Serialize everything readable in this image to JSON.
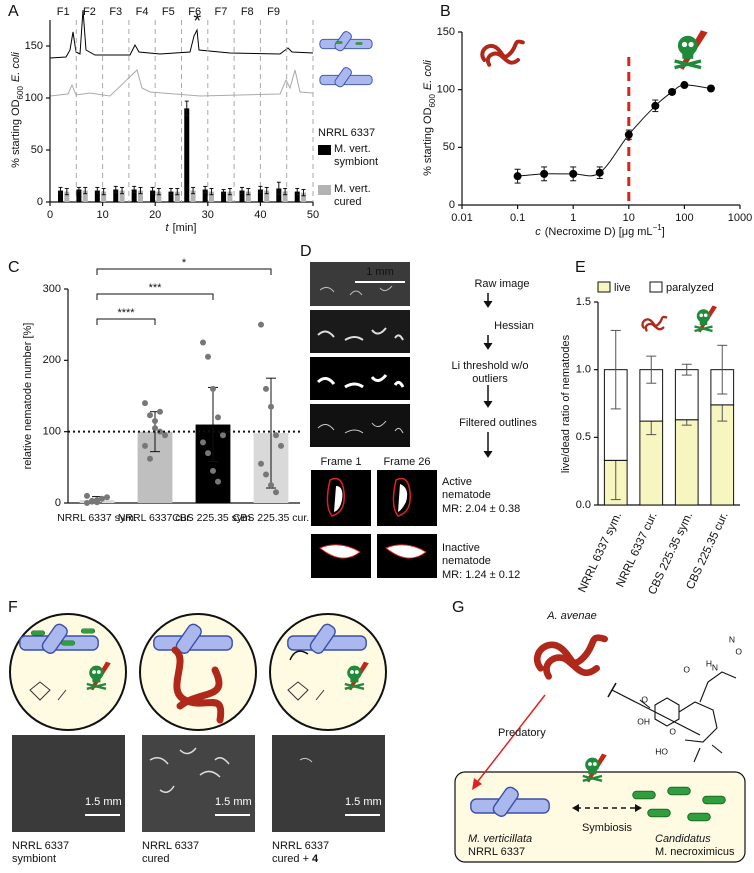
{
  "panel_labels": [
    "A",
    "B",
    "C",
    "D",
    "E",
    "F",
    "G"
  ],
  "chart_data": [
    {
      "type": "bar",
      "ylabel": {
        "main": "% starting OD",
        "sub": "600",
        "italic": "E. coli"
      },
      "xlabel": {
        "italic": "t",
        "main": "[min]"
      },
      "xlim": [
        0,
        50
      ],
      "xticks": [
        0,
        10,
        20,
        30,
        40,
        50
      ],
      "ylim": [
        0,
        175
      ],
      "yticks": [
        0,
        50,
        100,
        150
      ],
      "fractions": [
        "F1",
        "F2",
        "F3",
        "F4",
        "F5",
        "F6",
        "F7",
        "F8",
        "F9"
      ],
      "fraction_edges": [
        0,
        5,
        10,
        15,
        20,
        25,
        30,
        35,
        40,
        45,
        50
      ],
      "annotation": {
        "text": "*",
        "x": 28
      },
      "legend_title": "NRRL 6337",
      "series": [
        {
          "name": "M. vert. symbiont",
          "color": "#000000",
          "x": [
            2,
            5.5,
            9,
            12.5,
            16,
            19.5,
            23,
            26,
            29.5,
            33,
            36.5,
            40,
            43.5,
            47
          ],
          "values": [
            11,
            12,
            11,
            12,
            12,
            11,
            10,
            90,
            12,
            10,
            11,
            12,
            13,
            10
          ],
          "errors": [
            3,
            2,
            3,
            3,
            3,
            3,
            3,
            7,
            3,
            2,
            3,
            3,
            6,
            3
          ]
        },
        {
          "name": "M. vert. cured",
          "color": "#b3b3b3",
          "x": [
            3.2,
            6.7,
            10.2,
            13.7,
            17.2,
            20.7,
            24.2,
            27.2,
            30.7,
            34.2,
            37.7,
            41.2,
            44.7,
            48.2
          ],
          "values": [
            10,
            11,
            10,
            11,
            11,
            10,
            10,
            11,
            10,
            10,
            10,
            11,
            10,
            9
          ],
          "errors": [
            3,
            3,
            3,
            3,
            3,
            3,
            3,
            3,
            3,
            3,
            3,
            3,
            3,
            3
          ]
        }
      ]
    },
    {
      "type": "scatter",
      "xscale": "log",
      "ylabel": {
        "main": "% starting OD",
        "sub": "600",
        "italic": "E. coli"
      },
      "xlabel": {
        "italic": "c",
        "main": "(Necroxime D) [μg mL",
        "sup": "−1",
        "end": "]"
      },
      "xlim": [
        0.01,
        1000
      ],
      "xticks": [
        0.01,
        0.1,
        1,
        10,
        100,
        1000
      ],
      "ylim": [
        0,
        150
      ],
      "yticks": [
        0,
        50,
        100,
        150
      ],
      "x": [
        0.1,
        0.3,
        1,
        3,
        10,
        30,
        60,
        100,
        300
      ],
      "values": [
        25,
        27,
        27,
        28,
        61,
        86,
        98,
        104,
        101
      ],
      "errors": [
        6,
        6,
        6,
        5,
        4,
        5,
        2,
        1,
        1
      ],
      "color": "#000000",
      "threshold_x": 10,
      "threshold_color": "#e0201b"
    },
    {
      "type": "bar",
      "ylabel": "relative nematode number [%]",
      "ylim": [
        0,
        300
      ],
      "yticks": [
        0,
        100,
        200,
        300
      ],
      "categories": [
        "NRRL 6337 sym.",
        "NRRL 6337 cur.",
        "CBS 225.35 sym.",
        "CBS 225.35 cur."
      ],
      "values": [
        4,
        100,
        110,
        98
      ],
      "errors": [
        5,
        28,
        52,
        77
      ],
      "colors": [
        "#d9d9d9",
        "#bfbfbf",
        "#000000",
        "#d9d9d9"
      ],
      "points": [
        [
          0,
          2,
          4,
          6,
          8,
          10,
          3,
          1
        ],
        [
          140,
          123,
          115,
          100,
          95,
          80,
          62,
          105,
          128
        ],
        [
          225,
          205,
          160,
          120,
          95,
          85,
          70,
          45,
          30
        ],
        [
          250,
          160,
          135,
          95,
          80,
          55,
          40,
          25,
          15
        ]
      ],
      "reference_line": 100,
      "comparisons": [
        {
          "pair": [
            0,
            1
          ],
          "label": "****"
        },
        {
          "pair": [
            0,
            2
          ],
          "label": "***"
        },
        {
          "pair": [
            0,
            3
          ],
          "label": "*"
        }
      ]
    },
    {
      "type": "stacked_bar",
      "ylabel": "live/dead ratio of nematodes",
      "ylim": [
        0,
        1.5
      ],
      "yticks": [
        {
          "value": 0,
          "label": "0.0"
        },
        {
          "value": 0.5,
          "label": "0.5"
        },
        {
          "value": 1,
          "label": "1.0"
        },
        {
          "value": 1.5,
          "label": "1.5"
        }
      ],
      "categories": [
        "NRRL 6337 sym.",
        "NRRL 6337 cur.",
        "CBS 225.35 sym.",
        "CBS 225.35 cur."
      ],
      "series": [
        {
          "name": "live",
          "color": "#f7f5c0",
          "values": [
            0.33,
            0.62,
            0.63,
            0.74
          ],
          "errors": [
            0.29,
            0.1,
            0.04,
            0.12
          ]
        },
        {
          "name": "paralyzed",
          "color": "#ffffff",
          "values": [
            0.67,
            0.38,
            0.37,
            0.26
          ],
          "errors": [
            0.29,
            0.1,
            0.04,
            0.18
          ]
        }
      ]
    }
  ],
  "panel_d": {
    "scale": "1 mm",
    "steps": [
      "Raw image",
      "Hessian",
      "Li threshold w/o outliers",
      "Filtered outlines"
    ],
    "frames": [
      "Frame 1",
      "Frame 26"
    ],
    "active": {
      "label": "Active nematode",
      "mr": "MR: 2.04 ± 0.38"
    },
    "inactive": {
      "label": "Inactive nematode",
      "mr": "MR: 1.24 ± 0.12"
    }
  },
  "panel_f": {
    "scale": "1.5 mm",
    "captions": [
      {
        "name": "NRRL 6337",
        "state": "symbiont"
      },
      {
        "name": "NRRL 6337",
        "state": "cured"
      },
      {
        "name": "NRRL 6337",
        "state": "cured +",
        "compound": "4"
      }
    ]
  },
  "panel_g": {
    "nematode": "A. avenae",
    "predatory": "Predatory",
    "symbiosis": "Symbiosis",
    "fungus": {
      "italic": "M. verticillata",
      "strain": "NRRL 6337"
    },
    "bacterium": {
      "italic": "Candidatus",
      "name": "M. necroximicus"
    },
    "structure_labels": [
      "OH",
      "O",
      "O",
      "HO",
      "O",
      "H",
      "N",
      "N",
      "O"
    ]
  }
}
